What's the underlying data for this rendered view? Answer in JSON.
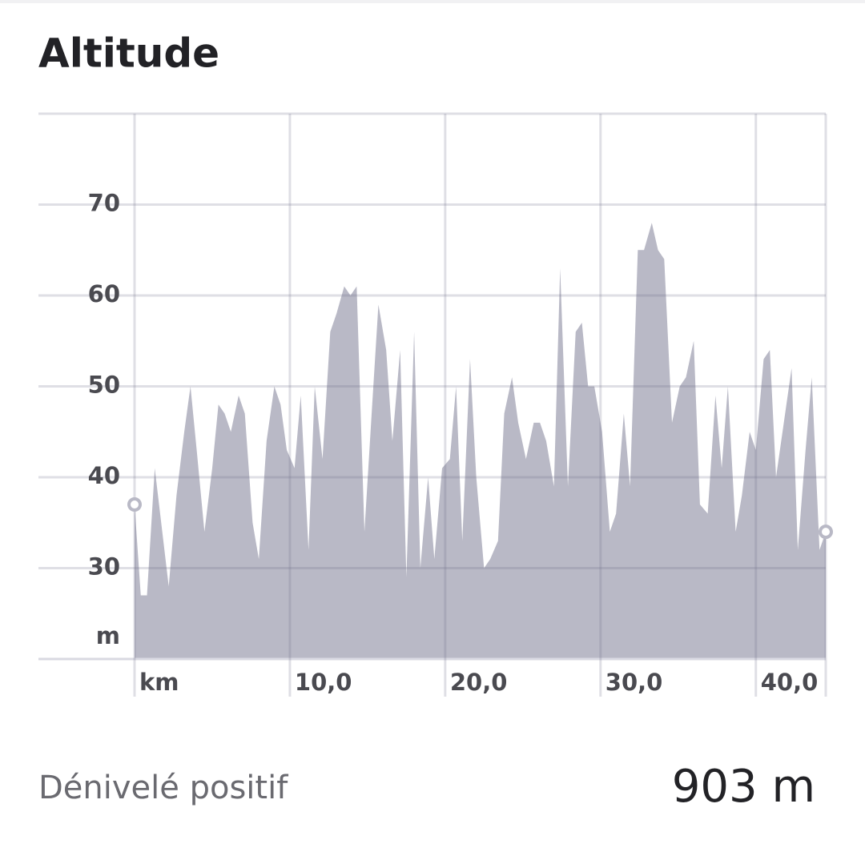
{
  "chart_data": {
    "type": "area",
    "title": "Altitude",
    "y_label": "m",
    "x": [
      0,
      0.4,
      0.8,
      1.3,
      2.2,
      2.7,
      3.2,
      3.6,
      4.0,
      4.5,
      5.0,
      5.4,
      5.8,
      6.2,
      6.7,
      7.1,
      7.6,
      8.0,
      8.5,
      9.0,
      9.4,
      9.8,
      10.3,
      10.7,
      11.2,
      11.6,
      12.1,
      12.6,
      13.0,
      13.5,
      13.9,
      14.3,
      14.8,
      15.3,
      15.7,
      16.2,
      16.6,
      17.1,
      17.5,
      18.0,
      18.4,
      18.9,
      19.3,
      19.8,
      20.3,
      20.7,
      21.1,
      21.6,
      22.0,
      22.5,
      22.9,
      23.4,
      23.8,
      24.3,
      24.7,
      25.2,
      25.7,
      26.1,
      26.5,
      27.0,
      27.4,
      27.9,
      28.4,
      28.8,
      29.2,
      29.6,
      30.1,
      30.6,
      31.0,
      31.5,
      31.9,
      32.4,
      32.8,
      33.3,
      33.7,
      34.1,
      34.6,
      35.1,
      35.5,
      36.0,
      36.4,
      36.9,
      37.4,
      37.8,
      38.2,
      38.7,
      39.1,
      39.6,
      40.0,
      40.5,
      40.9,
      41.3,
      41.8,
      42.3,
      42.7,
      43.2,
      43.6,
      44.1,
      44.5
    ],
    "values": [
      37,
      27,
      27,
      41,
      28,
      38,
      45,
      50,
      43,
      34,
      41,
      48,
      47,
      45,
      49,
      47,
      35,
      31,
      44,
      50,
      48,
      43,
      41,
      49,
      32,
      50,
      42,
      56,
      58,
      61,
      60,
      61,
      34,
      48,
      59,
      54,
      44,
      54,
      29,
      56,
      30,
      40,
      31,
      41,
      42,
      50,
      33,
      53,
      40,
      30,
      31,
      33,
      47,
      51,
      46,
      42,
      46,
      46,
      44,
      39,
      63,
      39,
      56,
      57,
      50,
      50,
      45,
      34,
      36,
      47,
      39,
      65,
      65,
      68,
      65,
      64,
      46,
      50,
      51,
      55,
      37,
      36,
      49,
      41,
      50,
      34,
      38,
      45,
      43,
      53,
      54,
      40,
      46,
      52,
      32,
      43,
      51,
      32,
      34
    ],
    "color": "#b9b9c6",
    "xlim": [
      0,
      44.5
    ],
    "ylim": [
      20,
      80
    ],
    "xticks": [
      {
        "value": 0,
        "label": "km"
      },
      {
        "value": 10,
        "label": "10,0"
      },
      {
        "value": 20,
        "label": "20,0"
      },
      {
        "value": 30,
        "label": "30,0"
      },
      {
        "value": 40,
        "label": "40,0"
      }
    ],
    "yticks": [
      30,
      40,
      50,
      60,
      70
    ],
    "grid": true
  },
  "summary": {
    "label": "Dénivelé positif",
    "value": "903 m"
  }
}
